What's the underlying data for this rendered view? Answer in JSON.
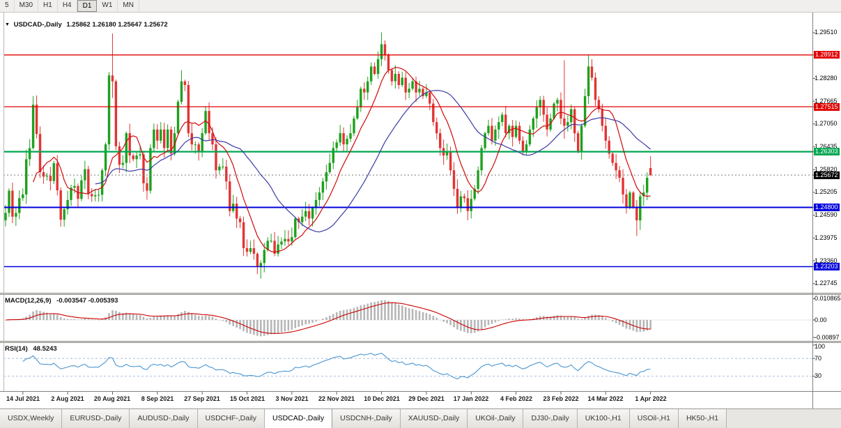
{
  "icons": {
    "chart_dropdown": "▼"
  },
  "toolbar": {
    "active": "D1",
    "timeframes": [
      {
        "label": "5"
      },
      {
        "label": "M30"
      },
      {
        "label": "H1"
      },
      {
        "label": "H4"
      },
      {
        "label": "D1"
      },
      {
        "label": "W1"
      },
      {
        "label": "MN"
      }
    ]
  },
  "chart": {
    "symbol_title": "USDCAD-,Daily",
    "ohlc_text": "1.25862 1.26180 1.25647 1.25672"
  },
  "indicators": {
    "macd_label": "MACD(12,26,9)",
    "macd_values": "-0.003547 -0.005393",
    "rsi_label": "RSI(14)",
    "rsi_value": "48.5243"
  },
  "axes": {
    "price_labels": [
      {
        "text": "1.29510",
        "bg": "plain"
      },
      {
        "text": "1.28912",
        "bg": "red"
      },
      {
        "text": "1.28280",
        "bg": "plain"
      },
      {
        "text": "1.27665",
        "bg": "plain"
      },
      {
        "text": "1.27515",
        "bg": "red"
      },
      {
        "text": "1.27050",
        "bg": "plain"
      },
      {
        "text": "1.26435",
        "bg": "plain"
      },
      {
        "text": "1.26303",
        "bg": "green"
      },
      {
        "text": "1.25820",
        "bg": "plain"
      },
      {
        "text": "1.25672",
        "bg": "black"
      },
      {
        "text": "1.25205",
        "bg": "plain"
      },
      {
        "text": "1.24800",
        "bg": "blue"
      },
      {
        "text": "1.24590",
        "bg": "plain"
      },
      {
        "text": "1.23975",
        "bg": "plain"
      },
      {
        "text": "1.23360",
        "bg": "plain"
      },
      {
        "text": "1.23203",
        "bg": "blue"
      },
      {
        "text": "1.22745",
        "bg": "plain"
      }
    ],
    "macd_labels": [
      {
        "text": "0.010865",
        "v": 0.010865
      },
      {
        "text": "0.00",
        "v": 0.0
      },
      {
        "text": "-0.00897",
        "v": -0.00897
      }
    ],
    "rsi_labels": [
      {
        "text": "100",
        "v": 100
      },
      {
        "text": "70",
        "v": 70
      },
      {
        "text": "30",
        "v": 30
      }
    ],
    "date_labels": [
      {
        "text": "14 Jul 2021",
        "bar": 5
      },
      {
        "text": "2 Aug 2021",
        "bar": 18
      },
      {
        "text": "20 Aug 2021",
        "bar": 31
      },
      {
        "text": "8 Sep 2021",
        "bar": 44
      },
      {
        "text": "27 Sep 2021",
        "bar": 57
      },
      {
        "text": "15 Oct 2021",
        "bar": 70
      },
      {
        "text": "3 Nov 2021",
        "bar": 83
      },
      {
        "text": "22 Nov 2021",
        "bar": 96
      },
      {
        "text": "10 Dec 2021",
        "bar": 109
      },
      {
        "text": "29 Dec 2021",
        "bar": 122
      },
      {
        "text": "17 Jan 2022",
        "bar": 135
      },
      {
        "text": "4 Feb 2022",
        "bar": 148
      },
      {
        "text": "23 Feb 2022",
        "bar": 161
      },
      {
        "text": "14 Mar 2022",
        "bar": 174
      },
      {
        "text": "1 Apr 2022",
        "bar": 187
      }
    ]
  },
  "chart_data": {
    "type": "candlestick",
    "symbol": "USDCAD",
    "period": "Daily",
    "current_bar": {
      "open": 1.25862,
      "high": 1.2618,
      "low": 1.25647,
      "close": 1.25672
    },
    "price_range": {
      "top": 1.29867,
      "bottom": 1.22535
    },
    "closes": [
      1.2465,
      1.2525,
      1.2455,
      1.2465,
      1.2505,
      1.2515,
      1.261,
      1.264,
      1.2757,
      1.2678,
      1.2575,
      1.2563,
      1.2565,
      1.2551,
      1.2599,
      1.2526,
      1.2447,
      1.2475,
      1.25,
      1.2533,
      1.2538,
      1.2503,
      1.2553,
      1.2583,
      1.2516,
      1.251,
      1.2513,
      1.2514,
      1.258,
      1.265,
      1.2836,
      1.282,
      1.2645,
      1.2595,
      1.26,
      1.268,
      1.262,
      1.261,
      1.262,
      1.2623,
      1.2545,
      1.2525,
      1.264,
      1.269,
      1.266,
      1.269,
      1.264,
      1.269,
      1.2625,
      1.268,
      1.2765,
      1.282,
      1.281,
      1.268,
      1.265,
      1.265,
      1.263,
      1.268,
      1.274,
      1.268,
      1.265,
      1.258,
      1.259,
      1.259,
      1.255,
      1.247,
      1.249,
      1.245,
      1.244,
      1.237,
      1.236,
      1.237,
      1.2355,
      1.232,
      1.233,
      1.2365,
      1.239,
      1.239,
      1.2355,
      1.238,
      1.2388,
      1.2395,
      1.2388,
      1.24,
      1.245,
      1.244,
      1.2455,
      1.247,
      1.245,
      1.2478,
      1.25,
      1.252,
      1.255,
      1.2575,
      1.26,
      1.264,
      1.2655,
      1.268,
      1.265,
      1.2665,
      1.268,
      1.272,
      1.275,
      1.28,
      1.279,
      1.282,
      1.286,
      1.284,
      1.288,
      1.292,
      1.289,
      1.285,
      1.282,
      1.284,
      1.281,
      1.283,
      1.279,
      1.28,
      1.282,
      1.279,
      1.28,
      1.278,
      1.279,
      1.276,
      1.271,
      1.268,
      1.264,
      1.262,
      1.263,
      1.258,
      1.253,
      1.248,
      1.251,
      1.2505,
      1.247,
      1.2503,
      1.253,
      1.258,
      1.264,
      1.268,
      1.27,
      1.266,
      1.269,
      1.271,
      1.273,
      1.268,
      1.27,
      1.267,
      1.27,
      1.266,
      1.263,
      1.265,
      1.269,
      1.272,
      1.275,
      1.277,
      1.273,
      1.269,
      1.272,
      1.276,
      1.277,
      1.272,
      1.27,
      1.271,
      1.2745,
      1.268,
      1.263,
      1.27,
      1.278,
      1.286,
      1.283,
      1.277,
      1.2745,
      1.27,
      1.266,
      1.2625,
      1.26,
      1.258,
      1.256,
      1.2515,
      1.248,
      1.252,
      1.248,
      1.2445,
      1.251,
      1.252,
      1.256,
      1.25672
    ],
    "overrides": [
      {
        "i": 8,
        "h": 1.278
      },
      {
        "i": 30,
        "h": 1.2845
      },
      {
        "i": 31,
        "h": 1.2949,
        "l": 1.2775
      },
      {
        "i": 51,
        "h": 1.285
      },
      {
        "i": 74,
        "l": 1.2288
      },
      {
        "i": 109,
        "h": 1.2952
      },
      {
        "i": 135,
        "l": 1.245
      },
      {
        "i": 162,
        "h": 1.2877,
        "l": 1.2665
      },
      {
        "i": 169,
        "h": 1.289
      },
      {
        "i": 183,
        "l": 1.2403
      },
      {
        "i": 187,
        "o": 1.25862,
        "h": 1.2618,
        "l": 1.25647,
        "c": 1.25672
      }
    ],
    "hlines": [
      {
        "price": 1.28912,
        "color": "#e00000",
        "w": 1.3
      },
      {
        "price": 1.27515,
        "color": "#e00000",
        "w": 1.3
      },
      {
        "price": 1.26303,
        "color": "#00a651",
        "w": 2.2
      },
      {
        "price": 1.248,
        "color": "#0000dd",
        "w": 2.0
      },
      {
        "price": 1.23203,
        "color": "#0000dd",
        "w": 1.6
      }
    ],
    "bid_price": 1.25672,
    "ma_periods": {
      "fast": 9,
      "slow": 27
    },
    "macd_params": [
      12,
      26,
      9
    ],
    "rsi_period": 14,
    "rsi_levels": [
      70,
      30
    ]
  },
  "tabs": {
    "active_index": 4,
    "items": [
      {
        "label": "USDX,Weekly"
      },
      {
        "label": "EURUSD-,Daily"
      },
      {
        "label": "AUDUSD-,Daily"
      },
      {
        "label": "USDCHF-,Daily"
      },
      {
        "label": "USDCAD-,Daily"
      },
      {
        "label": "USDCNH-,Daily"
      },
      {
        "label": "XAUUSD-,Daily"
      },
      {
        "label": "UKOil-,Daily"
      },
      {
        "label": "DJ30-,Daily"
      },
      {
        "label": "UK100-,H1"
      },
      {
        "label": "USOil-,H1"
      },
      {
        "label": "HK50-,H1"
      }
    ]
  },
  "colors": {
    "bull": "#1da11d",
    "bear": "#e23434",
    "ma_fast": "#cf0a0a",
    "ma_slow": "#3a3aa6",
    "macd_hist": "#b6b6b6",
    "macd_signal": "#cc0000",
    "rsi_line": "#4a96d2",
    "axis_line": "#808080",
    "label_red": "#e00000",
    "label_green": "#00a651",
    "label_blue": "#0000dd",
    "label_black": "#000000"
  }
}
